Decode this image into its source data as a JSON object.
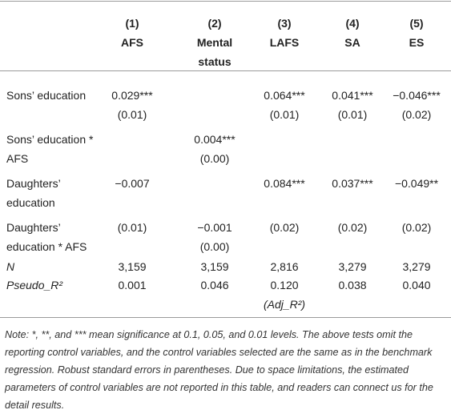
{
  "table": {
    "headers": [
      {
        "number": "(1)",
        "name": [
          "AFS"
        ]
      },
      {
        "number": "(2)",
        "name": [
          "Mental",
          "status"
        ]
      },
      {
        "number": "(3)",
        "name": [
          "LAFS"
        ]
      },
      {
        "number": "(4)",
        "name": [
          "SA"
        ]
      },
      {
        "number": "(5)",
        "name": [
          "ES"
        ]
      }
    ],
    "rows": [
      {
        "label": [
          "Sons’ education"
        ],
        "cells": [
          [
            "0.029***",
            "(0.01)"
          ],
          null,
          [
            "0.064***",
            "(0.01)"
          ],
          [
            "0.041***",
            "(0.01)"
          ],
          [
            "−0.046***",
            "(0.02)"
          ]
        ]
      },
      {
        "label": [
          "Sons’ education *",
          "AFS"
        ],
        "cells": [
          null,
          [
            "0.004***",
            "(0.00)"
          ],
          null,
          null,
          null
        ]
      },
      {
        "label": [
          "Daughters’",
          "education"
        ],
        "cells": [
          [
            "−0.007"
          ],
          null,
          [
            "0.084***"
          ],
          [
            "0.037***"
          ],
          [
            "−0.049**"
          ]
        ]
      },
      {
        "label": [
          "Daughters’",
          "education * AFS"
        ],
        "cells": [
          [
            "(0.01)"
          ],
          [
            "−0.001",
            "(0.00)"
          ],
          [
            "(0.02)"
          ],
          [
            "(0.02)"
          ],
          [
            "(0.02)"
          ]
        ]
      },
      {
        "label": [
          "N"
        ],
        "italic": true,
        "cells": [
          [
            "3,159"
          ],
          [
            "3,159"
          ],
          [
            "2,816"
          ],
          [
            "3,279"
          ],
          [
            "3,279"
          ]
        ]
      },
      {
        "label": [
          "Pseudo_R²"
        ],
        "italic": true,
        "cells": [
          [
            "0.001"
          ],
          [
            "0.046"
          ],
          [
            "0.120",
            "(Adj_R²)"
          ],
          [
            "0.038"
          ],
          [
            "0.040"
          ]
        ]
      }
    ],
    "note": "Note: *, **, and *** mean significance at 0.1, 0.05, and 0.01 levels. The above tests omit the reporting control variables, and the control variables selected are the same as in the benchmark regression. Robust standard errors in parentheses. Due to space limitations, the estimated parameters of control variables are not reported in this table, and readers can connect us for the detail results."
  }
}
